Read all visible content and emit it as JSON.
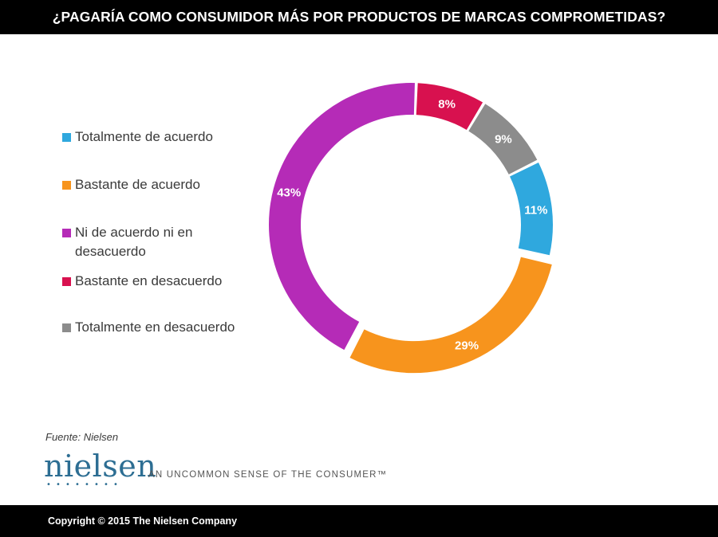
{
  "header": {
    "title": "¿PAGARÍA COMO CONSUMIDOR MÁS POR PRODUCTOS DE MARCAS COMPROMETIDAS?"
  },
  "chart_data": {
    "type": "pie",
    "variant": "donut",
    "title": "¿PAGARÍA COMO CONSUMIDOR MÁS POR PRODUCTOS DE MARCAS COMPROMETIDAS?",
    "legend_position": "left",
    "categories": [
      "Totalmente de acuerdo",
      "Bastante de acuerdo",
      "Ni de acuerdo ni en desacuerdo",
      "Bastante en desacuerdo",
      "Totalmente en desacuerdo"
    ],
    "values": [
      11,
      29,
      43,
      8,
      9
    ],
    "labels": [
      "11%",
      "29%",
      "43%",
      "8%",
      "9%"
    ],
    "colors": [
      "#2fa8de",
      "#f7941d",
      "#b52bb7",
      "#d8114f",
      "#8c8c8c"
    ]
  },
  "legend": {
    "items": [
      {
        "label_line1": "Totalmente de acuerdo",
        "label_line2": ""
      },
      {
        "label_line1": "Bastante de acuerdo",
        "label_line2": ""
      },
      {
        "label_line1": "Ni de acuerdo ni en",
        "label_line2": "desacuerdo"
      },
      {
        "label_line1": "Bastante en desacuerdo",
        "label_line2": ""
      },
      {
        "label_line1": "Totalmente en desacuerdo",
        "label_line2": ""
      }
    ]
  },
  "footer": {
    "source": "Fuente: Nielsen",
    "logo_text": "nielsen",
    "logo_dots": "••••••••",
    "tagline": "AN UNCOMMON SENSE OF THE CONSUMER™",
    "copyright": "Copyright © 2015 The Nielsen Company"
  }
}
